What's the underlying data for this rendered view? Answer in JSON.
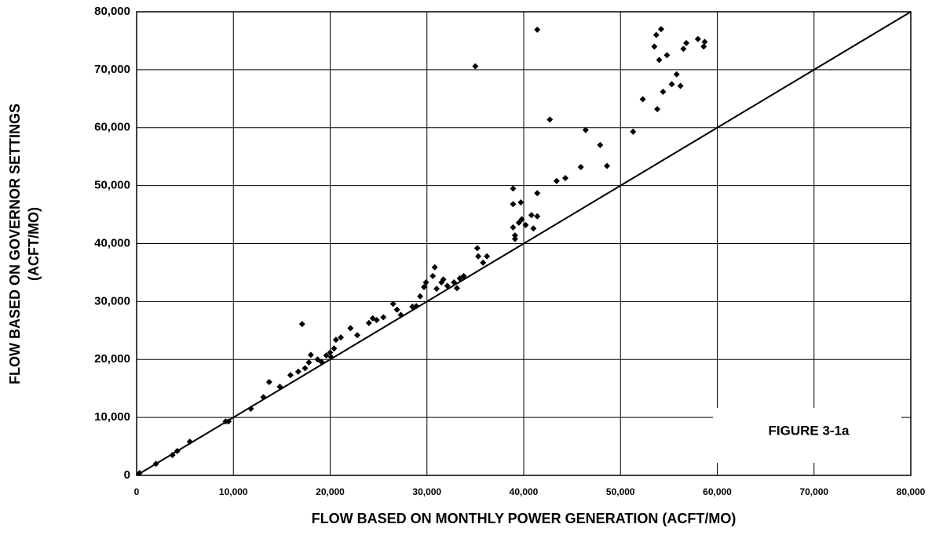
{
  "chart_data": {
    "type": "scatter",
    "xlabel": "FLOW BASED ON MONTHLY POWER GENERATION (ACFT/MO)",
    "ylabel": [
      "FLOW BASED ON GOVERNOR SETTINGS",
      "(ACFT/MO)"
    ],
    "annotation": "FIGURE 3-1a",
    "xlim": [
      0,
      80000
    ],
    "ylim": [
      0,
      80000
    ],
    "xticks": [
      0,
      {
        "value": 10000,
        "label": "10,000"
      },
      {
        "value": 20000,
        "label": "20,000"
      },
      {
        "value": 30000,
        "label": "30,000"
      },
      {
        "value": 40000,
        "label": "40,000"
      },
      {
        "value": 50000,
        "label": "50,000"
      },
      {
        "value": 60000,
        "label": "60,000"
      },
      {
        "value": 70000,
        "label": "70,000"
      },
      {
        "value": 80000,
        "label": "80,000"
      }
    ],
    "yticks": [
      0,
      {
        "value": 10000,
        "label": "10,000"
      },
      {
        "value": 20000,
        "label": "20,000"
      },
      {
        "value": 30000,
        "label": "30,000"
      },
      {
        "value": 40000,
        "label": "40,000"
      },
      {
        "value": 50000,
        "label": "50,000"
      },
      {
        "value": 60000,
        "label": "60,000"
      },
      {
        "value": 70000,
        "label": "70,000"
      },
      {
        "value": 80000,
        "label": "80,000"
      }
    ],
    "grid": true,
    "color": "#000000",
    "x": [
      300,
      2000,
      3700,
      4200,
      5500,
      9200,
      9500,
      11800,
      13100,
      13700,
      14800,
      15900,
      16700,
      17100,
      17400,
      17800,
      18000,
      18700,
      19100,
      19600,
      20000,
      20100,
      20400,
      20600,
      21100,
      22100,
      22800,
      24000,
      24400,
      24800,
      25500,
      26500,
      26900,
      27300,
      28500,
      28900,
      29300,
      29700,
      29900,
      30600,
      30800,
      31000,
      31500,
      31700,
      32100,
      32800,
      33100,
      33400,
      33800,
      35000,
      35200,
      35300,
      35800,
      36200,
      38900,
      38900,
      38900,
      39100,
      39100,
      39500,
      39700,
      39800,
      40200,
      40800,
      41000,
      41400,
      41400,
      41400,
      42700,
      43400,
      44300,
      45900,
      46400,
      47900,
      48600,
      51300,
      52300,
      53500,
      53700,
      53800,
      54000,
      54200,
      54400,
      54800,
      55300,
      55800,
      56200,
      56500,
      56800,
      58000,
      58600,
      58700
    ],
    "values": [
      400,
      2000,
      3500,
      4200,
      5800,
      9300,
      9300,
      11500,
      13500,
      16100,
      15300,
      17300,
      17900,
      26100,
      18500,
      19500,
      20800,
      20000,
      19600,
      20700,
      21200,
      20400,
      21900,
      23400,
      23800,
      25400,
      24200,
      26300,
      27100,
      26800,
      27300,
      29600,
      28600,
      27700,
      29100,
      29200,
      30900,
      32500,
      33300,
      34400,
      35900,
      32200,
      33300,
      33800,
      32700,
      33300,
      32300,
      34000,
      34400,
      70600,
      39200,
      37800,
      36700,
      37800,
      49500,
      46800,
      42800,
      41400,
      40800,
      43600,
      47100,
      44200,
      43200,
      44900,
      42600,
      76900,
      48700,
      44700,
      61400,
      50800,
      51300,
      53200,
      59600,
      57000,
      53400,
      59300,
      64900,
      74000,
      76000,
      63200,
      71700,
      77000,
      66200,
      72500,
      67500,
      69200,
      67200,
      73600,
      74600,
      75300,
      74000,
      74800
    ],
    "reference_line": {
      "x": [
        0,
        80000
      ],
      "y": [
        0,
        80000
      ]
    }
  }
}
